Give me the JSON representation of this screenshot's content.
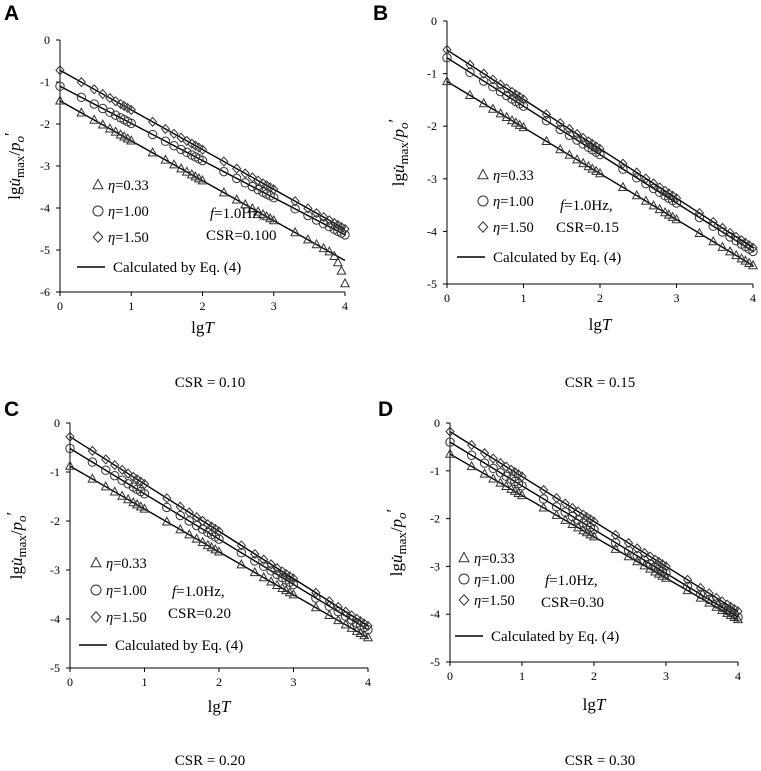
{
  "chart_data": [
    {
      "panel": "A",
      "type": "scatter",
      "caption": "CSR = 0.10",
      "xlabel_main": "lg",
      "xlabel_var": "T",
      "ylabel": {
        "main": "lg",
        "sym": "u̇",
        "sub": "max",
        "slash": "/",
        "p": "p",
        "psub": "o",
        "prime": "′"
      },
      "xlim": [
        0,
        4
      ],
      "ylim": [
        -6,
        0
      ],
      "xticks": [
        0,
        1,
        2,
        3,
        4
      ],
      "yticks": [
        0,
        -1,
        -2,
        -3,
        -4,
        -5,
        -6
      ],
      "legend": {
        "entries": [
          {
            "marker": "triangle",
            "label_var": "η",
            "label_val": "=0.33"
          },
          {
            "marker": "circle",
            "label_var": "η",
            "label_val": "=1.00"
          },
          {
            "marker": "diamond",
            "label_var": "η",
            "label_val": "=1.50"
          }
        ],
        "line_label": "Calculated by Eq. (4)",
        "note1_var": "f",
        "note1_val": "=1.0Hz,",
        "note2": "CSR=0.100"
      },
      "series": [
        {
          "name": "η=0.33",
          "marker": "triangle",
          "y0": -1.45,
          "slope": -0.95,
          "y0_fit": -1.45,
          "slope_fit": -0.95,
          "tail": [
            [
              3.85,
              -5.15
            ],
            [
              3.9,
              -5.3
            ],
            [
              3.95,
              -5.5
            ],
            [
              4.0,
              -5.8
            ]
          ]
        },
        {
          "name": "η=1.00",
          "marker": "circle",
          "y0": -1.1,
          "slope": -0.885,
          "y0_fit": -1.1,
          "slope_fit": -0.885
        },
        {
          "name": "η=1.50",
          "marker": "diamond",
          "y0": -0.72,
          "slope": -0.945,
          "y0_fit": -0.72,
          "slope_fit": -0.945
        }
      ]
    },
    {
      "panel": "B",
      "type": "scatter",
      "caption": "CSR = 0.15",
      "xlabel_main": "lg",
      "xlabel_var": "T",
      "ylabel": {
        "main": "lg",
        "sym": "u̇",
        "sub": "max",
        "slash": "/",
        "p": "p",
        "psub": "o",
        "prime": "′"
      },
      "xlim": [
        0,
        4
      ],
      "ylim": [
        -5,
        0
      ],
      "xticks": [
        0,
        1,
        2,
        3,
        4
      ],
      "yticks": [
        0,
        -1,
        -2,
        -3,
        -4,
        -5
      ],
      "legend": {
        "entries": [
          {
            "marker": "triangle",
            "label_var": "η",
            "label_val": "=0.33"
          },
          {
            "marker": "circle",
            "label_var": "η",
            "label_val": "=1.00"
          },
          {
            "marker": "diamond",
            "label_var": "η",
            "label_val": "=1.50"
          }
        ],
        "line_label": "Calculated by Eq. (4)",
        "note1_var": "f",
        "note1_val": "=1.0Hz,",
        "note2": "CSR=0.15"
      },
      "series": [
        {
          "name": "η=0.33",
          "marker": "triangle",
          "y0": -1.15,
          "slope": -0.875,
          "y0_fit": -1.15,
          "slope_fit": -0.875
        },
        {
          "name": "η=1.00",
          "marker": "circle",
          "y0": -0.7,
          "slope": -0.92,
          "y0_fit": -0.7,
          "slope_fit": -0.92
        },
        {
          "name": "η=1.50",
          "marker": "diamond",
          "y0": -0.55,
          "slope": -0.94,
          "y0_fit": -0.55,
          "slope_fit": -0.94
        }
      ]
    },
    {
      "panel": "C",
      "type": "scatter",
      "caption": "CSR = 0.20",
      "xlabel_main": "lg",
      "xlabel_var": "T",
      "ylabel": {
        "main": "lg",
        "sym": "u̇",
        "sub": "max",
        "slash": "/",
        "p": "p",
        "psub": "o",
        "prime": "′"
      },
      "xlim": [
        0,
        4
      ],
      "ylim": [
        -5,
        0
      ],
      "xticks": [
        0,
        1,
        2,
        3,
        4
      ],
      "yticks": [
        0,
        -1,
        -2,
        -3,
        -4,
        -5
      ],
      "legend": {
        "entries": [
          {
            "marker": "triangle",
            "label_var": "η",
            "label_val": "=0.33"
          },
          {
            "marker": "circle",
            "label_var": "η",
            "label_val": "=1.00"
          },
          {
            "marker": "diamond",
            "label_var": "η",
            "label_val": "=1.50"
          }
        ],
        "line_label": "Calculated by Eq. (4)",
        "note1_var": "f",
        "note1_val": "=1.0Hz,",
        "note2": "CSR=0.20"
      },
      "series": [
        {
          "name": "η=0.33",
          "marker": "triangle",
          "y0": -0.88,
          "slope": -0.875,
          "y0_fit": -0.88,
          "slope_fit": -0.875
        },
        {
          "name": "η=1.00",
          "marker": "circle",
          "y0": -0.52,
          "slope": -0.925,
          "y0_fit": -0.52,
          "slope_fit": -0.925
        },
        {
          "name": "η=1.50",
          "marker": "diamond",
          "y0": -0.28,
          "slope": -0.965,
          "y0_fit": -0.28,
          "slope_fit": -0.965
        }
      ]
    },
    {
      "panel": "D",
      "type": "scatter",
      "caption": "CSR = 0.30",
      "xlabel_main": "lg",
      "xlabel_var": "T",
      "ylabel": {
        "main": "lg",
        "sym": "u̇",
        "sub": "max",
        "slash": "/",
        "p": "p",
        "psub": "o",
        "prime": "′"
      },
      "xlim": [
        0,
        4
      ],
      "ylim": [
        -5,
        0
      ],
      "xticks": [
        0,
        1,
        2,
        3,
        4
      ],
      "yticks": [
        0,
        -1,
        -2,
        -3,
        -4,
        -5
      ],
      "legend": {
        "entries": [
          {
            "marker": "triangle",
            "label_var": "η",
            "label_val": "=0.33"
          },
          {
            "marker": "circle",
            "label_var": "η",
            "label_val": "=1.00"
          },
          {
            "marker": "diamond",
            "label_var": "η",
            "label_val": "=1.50"
          }
        ],
        "line_label": "Calculated by Eq. (4)",
        "note1_var": "f",
        "note1_val": "=1.0Hz,",
        "note2": "CSR=0.30"
      },
      "series": [
        {
          "name": "η=0.33",
          "marker": "triangle",
          "y0": -0.65,
          "slope": -0.865,
          "y0_fit": -0.65,
          "slope_fit": -0.865
        },
        {
          "name": "η=1.00",
          "marker": "circle",
          "y0": -0.4,
          "slope": -0.915,
          "y0_fit": -0.4,
          "slope_fit": -0.915
        },
        {
          "name": "η=1.50",
          "marker": "diamond",
          "y0": -0.18,
          "slope": -0.94,
          "y0_fit": -0.18,
          "slope_fit": -0.94
        }
      ]
    }
  ],
  "sample_lgT": [
    0,
    0.3,
    0.48,
    0.6,
    0.7,
    0.78,
    0.85,
    0.9,
    0.95,
    1.0,
    1.3,
    1.48,
    1.6,
    1.7,
    1.78,
    1.85,
    1.9,
    1.95,
    2.0,
    2.3,
    2.48,
    2.6,
    2.7,
    2.78,
    2.85,
    2.9,
    2.95,
    3.0,
    3.3,
    3.48,
    3.6,
    3.7,
    3.78,
    3.85,
    3.9,
    3.95,
    4.0
  ]
}
